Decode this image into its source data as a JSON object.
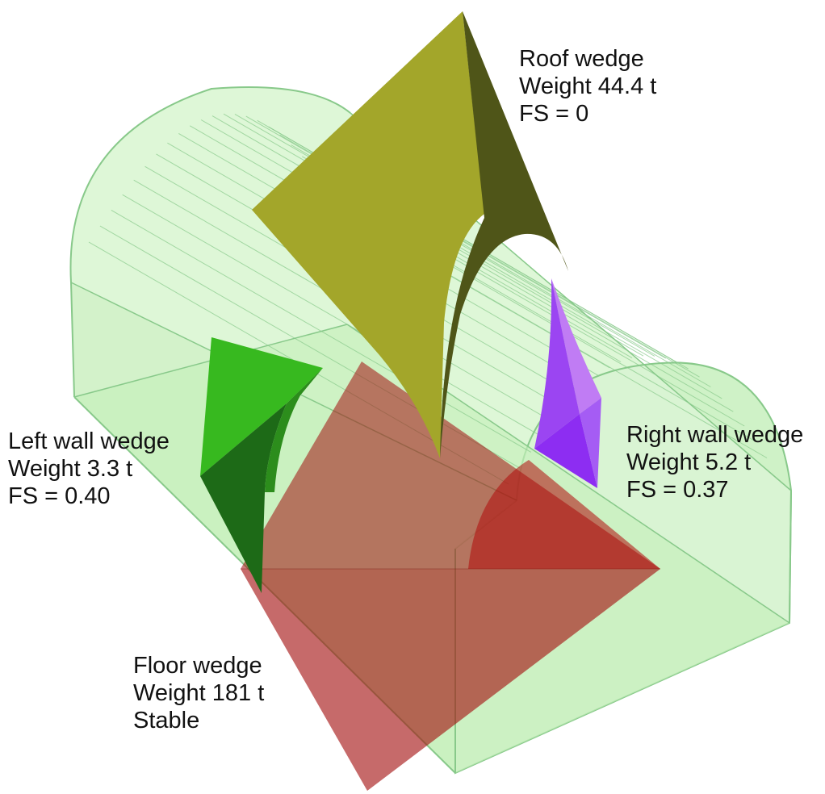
{
  "wedges": {
    "roof": {
      "title": "Roof wedge",
      "weight": "Weight 44.4 t",
      "status": "FS = 0",
      "color_light": "#a3a62a",
      "color_dark": "#4f5518"
    },
    "left_wall": {
      "title": "Left wall wedge",
      "weight": "Weight 3.3 t",
      "status": "FS = 0.40",
      "color_light": "#37b91f",
      "color_dark": "#1d6a17"
    },
    "right_wall": {
      "title": "Right wall wedge",
      "weight": "Weight 5.2 t",
      "status": "FS = 0.37",
      "color_light": "#b45cf3",
      "color_dark": "#8d2df2"
    },
    "floor": {
      "title": "Floor wedge",
      "weight": "Weight 181 t",
      "status": "Stable",
      "color": "#a30f0f"
    }
  },
  "tunnel": {
    "fill": "#cdf2c1",
    "stroke": "#88c98a"
  }
}
